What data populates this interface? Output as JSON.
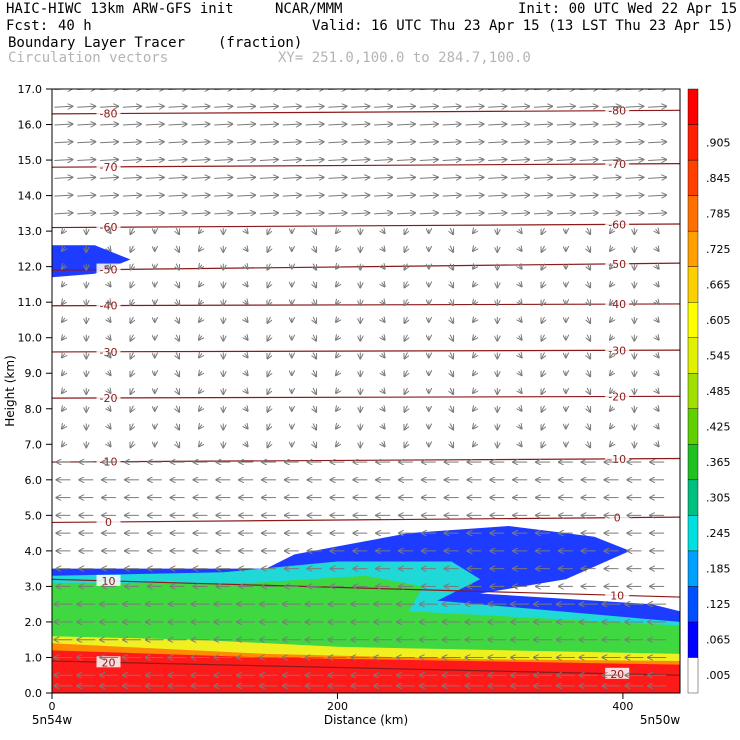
{
  "header": {
    "model": "HAIC-HIWC 13km ARW-GFS init",
    "org": "NCAR/MMM",
    "init": "Init: 00 UTC Wed 22 Apr 15",
    "fcst_label": "Fcst:",
    "fcst_value": "40 h",
    "valid": "Valid: 16 UTC Thu 23 Apr 15 (13 LST Thu 23 Apr 15)",
    "field": "Boundary Layer Tracer",
    "units": "(fraction)",
    "vectors": "Circulation vectors",
    "xy": "XY= 251.0,100.0 to 284.7,100.0"
  },
  "colors": {
    "contour": "#8b1a1a",
    "vector": "#7a7a7a",
    "tracer_blue": "#1e3cff",
    "tracer_cyan": "#20d8d8",
    "tracer_green": "#40d840",
    "tracer_yellow": "#f0f020",
    "tracer_orange": "#ff8c00",
    "tracer_red": "#ff1a1a"
  },
  "chart_data": {
    "type": "heatmap",
    "xlabel": "Distance (km)",
    "ylabel": "Height (km)",
    "xlim": [
      0,
      440
    ],
    "ylim": [
      0,
      17
    ],
    "xticks": [
      0,
      200,
      400
    ],
    "xtick_labels": [
      "0",
      "200",
      "400"
    ],
    "yticks": [
      0,
      1,
      2,
      3,
      4,
      5,
      6,
      7,
      8,
      9,
      10,
      11,
      12,
      13,
      14,
      15,
      16,
      17
    ],
    "ytick_labels": [
      "0.0",
      "1.0",
      "2.0",
      "3.0",
      "4.0",
      "5.0",
      "6.0",
      "7.0",
      "8.0",
      "9.0",
      "10.0",
      "11.0",
      "12.0",
      "13.0",
      "14.0",
      "15.0",
      "16.0",
      "17.0"
    ],
    "x_endpoint_labels": [
      "5n54w",
      "5n50w"
    ],
    "colorbar": {
      "labels": [
        ".005",
        ".065",
        ".125",
        ".185",
        ".245",
        ".305",
        ".365",
        ".425",
        ".485",
        ".545",
        ".605",
        ".665",
        ".725",
        ".785",
        ".845",
        ".905"
      ],
      "colors": [
        "#ffffff",
        "#0000ff",
        "#0050ff",
        "#00a0ff",
        "#00e0e0",
        "#00c080",
        "#20c020",
        "#60d000",
        "#a0e000",
        "#e0f000",
        "#ffff00",
        "#ffd000",
        "#ffa000",
        "#ff7000",
        "#ff4000",
        "#ff2000",
        "#ff0000"
      ]
    },
    "temperature_contours": [
      {
        "label": "20",
        "points": [
          [
            0,
            0.9
          ],
          [
            440,
            0.5
          ]
        ]
      },
      {
        "label": "10",
        "points": [
          [
            0,
            3.2
          ],
          [
            440,
            2.7
          ]
        ]
      },
      {
        "label": "0",
        "points": [
          [
            0,
            4.8
          ],
          [
            440,
            4.95
          ]
        ]
      },
      {
        "label": "-10",
        "points": [
          [
            0,
            6.5
          ],
          [
            440,
            6.6
          ]
        ]
      },
      {
        "label": "-20",
        "points": [
          [
            0,
            8.3
          ],
          [
            440,
            8.35
          ]
        ]
      },
      {
        "label": "-30",
        "points": [
          [
            0,
            9.6
          ],
          [
            440,
            9.65
          ]
        ]
      },
      {
        "label": "-40",
        "points": [
          [
            0,
            10.9
          ],
          [
            440,
            10.95
          ]
        ]
      },
      {
        "label": "-50",
        "points": [
          [
            0,
            11.9
          ],
          [
            440,
            12.1
          ]
        ]
      },
      {
        "label": "-60",
        "points": [
          [
            0,
            13.1
          ],
          [
            440,
            13.2
          ]
        ]
      },
      {
        "label": "-70",
        "points": [
          [
            0,
            14.8
          ],
          [
            440,
            14.9
          ]
        ]
      },
      {
        "label": "-80",
        "points": [
          [
            0,
            16.3
          ],
          [
            440,
            16.4
          ]
        ]
      }
    ],
    "tracer_regions": [
      {
        "name": "upper-blob",
        "level": 0.065,
        "points": [
          [
            0,
            11.7
          ],
          [
            30,
            11.8
          ],
          [
            55,
            12.2
          ],
          [
            30,
            12.6
          ],
          [
            0,
            12.6
          ]
        ]
      },
      {
        "name": "mixed-layer-blue",
        "level": 0.065,
        "points": [
          [
            0,
            3.5
          ],
          [
            150,
            3.5
          ],
          [
            170,
            3.9
          ],
          [
            250,
            4.5
          ],
          [
            320,
            4.7
          ],
          [
            380,
            4.4
          ],
          [
            405,
            4.0
          ],
          [
            360,
            3.2
          ],
          [
            300,
            2.8
          ],
          [
            420,
            2.5
          ],
          [
            440,
            2.3
          ],
          [
            440,
            0
          ],
          [
            0,
            0
          ]
        ]
      },
      {
        "name": "mixed-layer-cyan",
        "level": 0.185,
        "points": [
          [
            0,
            3.3
          ],
          [
            120,
            3.4
          ],
          [
            200,
            3.7
          ],
          [
            280,
            3.7
          ],
          [
            300,
            3.2
          ],
          [
            270,
            2.6
          ],
          [
            440,
            2.0
          ],
          [
            440,
            0
          ],
          [
            0,
            0
          ]
        ]
      },
      {
        "name": "mixed-layer-green",
        "level": 0.365,
        "points": [
          [
            0,
            3.1
          ],
          [
            140,
            3.1
          ],
          [
            220,
            3.3
          ],
          [
            260,
            3.0
          ],
          [
            250,
            2.3
          ],
          [
            440,
            1.9
          ],
          [
            440,
            0
          ],
          [
            0,
            0
          ]
        ]
      },
      {
        "name": "mixed-layer-yellow",
        "level": 0.605,
        "points": [
          [
            0,
            1.6
          ],
          [
            100,
            1.5
          ],
          [
            200,
            1.3
          ],
          [
            440,
            1.1
          ],
          [
            440,
            0
          ],
          [
            0,
            0
          ]
        ]
      },
      {
        "name": "mixed-layer-orange",
        "level": 0.785,
        "points": [
          [
            0,
            1.4
          ],
          [
            150,
            1.1
          ],
          [
            300,
            0.95
          ],
          [
            440,
            0.9
          ],
          [
            440,
            0
          ],
          [
            0,
            0
          ]
        ]
      },
      {
        "name": "mixed-layer-red",
        "level": 0.905,
        "points": [
          [
            0,
            1.2
          ],
          [
            150,
            1.0
          ],
          [
            440,
            0.8
          ],
          [
            440,
            0
          ],
          [
            0,
            0
          ]
        ]
      }
    ],
    "vector_field": {
      "upper_levels_km": [
        17.0,
        16.5,
        16.0,
        15.5,
        15.0,
        14.5,
        14.0,
        13.5
      ],
      "upper_direction": "eastward",
      "mid_levels_km": [
        13.0,
        12.5,
        12.0,
        11.5,
        11.0,
        10.5,
        10.0,
        9.5,
        9.0,
        8.5,
        8.0,
        7.5,
        7.0
      ],
      "mid_direction": "weak",
      "lower_levels_km": [
        6.5,
        6.0,
        5.5,
        5.0,
        4.5,
        4.0,
        3.5,
        3.0,
        2.5,
        2.0,
        1.5,
        1.0,
        0.5,
        0.2
      ],
      "lower_direction": "westward"
    }
  }
}
